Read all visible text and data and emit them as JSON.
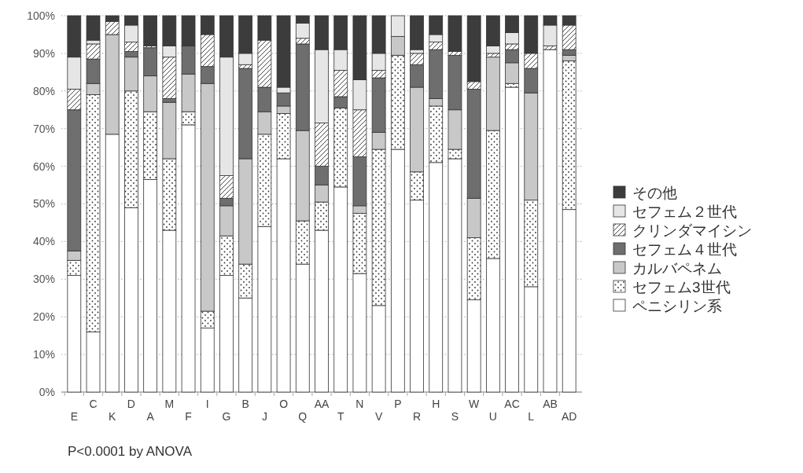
{
  "chart_data": {
    "type": "bar",
    "stacked": true,
    "categories": [
      "E",
      "C",
      "K",
      "D",
      "A",
      "M",
      "F",
      "I",
      "G",
      "B",
      "J",
      "O",
      "Q",
      "AA",
      "T",
      "N",
      "V",
      "P",
      "R",
      "H",
      "S",
      "W",
      "U",
      "AC",
      "L",
      "AB",
      "AD"
    ],
    "series": [
      {
        "name": "ペニシリン系",
        "color": "#ffffff",
        "values": [
          31,
          16,
          68.5,
          49,
          56.5,
          43,
          71,
          17,
          31,
          25,
          44,
          62,
          34,
          43,
          54.5,
          31.5,
          23,
          64.5,
          51,
          61,
          62,
          24.5,
          35.5,
          81,
          28,
          91,
          48.5
        ]
      },
      {
        "name": "セフェム3世代",
        "color": "#333333",
        "values": [
          4,
          63,
          0,
          31,
          18,
          19,
          3.5,
          4.5,
          10.5,
          9,
          24.5,
          12,
          11.5,
          7.5,
          21,
          16,
          41.5,
          25,
          7.5,
          15,
          2.5,
          16.5,
          34,
          1,
          23,
          0,
          39.5
        ]
      },
      {
        "name": "カルバペネム",
        "color": "#c8c8c8",
        "values": [
          2.5,
          3,
          26.5,
          9,
          9.5,
          15,
          10,
          60.5,
          8,
          28,
          6,
          2,
          24,
          4.5,
          0,
          2,
          4.5,
          5,
          22.5,
          2,
          10.5,
          10.5,
          19.5,
          5.5,
          28.5,
          0,
          1.5
        ]
      },
      {
        "name": "セフェム４世代",
        "color": "#6e6e6e",
        "values": [
          37.5,
          6.5,
          0,
          1.5,
          7.5,
          1,
          7.5,
          4.5,
          2,
          24,
          6.5,
          3.5,
          23,
          5,
          3,
          13,
          14.5,
          0,
          6,
          13,
          14.5,
          29,
          0,
          3.5,
          6.5,
          0,
          1.5
        ]
      },
      {
        "name": "クリンダマイシン",
        "color": "#333333",
        "values": [
          5.5,
          4,
          3.5,
          2.5,
          0.5,
          11,
          0,
          8.5,
          6,
          1,
          12.5,
          0,
          1.5,
          11.5,
          7,
          12.5,
          2,
          0,
          3,
          2,
          1,
          2,
          1,
          1.5,
          4,
          1,
          6.5
        ]
      },
      {
        "name": "セフェム２世代",
        "color": "#e6e6e6",
        "values": [
          8.5,
          1,
          0,
          4.5,
          0,
          3,
          0,
          0,
          31.5,
          3,
          0,
          1.5,
          4,
          19.5,
          5.5,
          8,
          4.5,
          5.5,
          1,
          2,
          0,
          0,
          2,
          3,
          0,
          5.5,
          0
        ]
      },
      {
        "name": "その他",
        "color": "#3c3c3c",
        "values": [
          11,
          6.5,
          1.5,
          2.5,
          8,
          8,
          8,
          5,
          11,
          10,
          6.5,
          19,
          2,
          9,
          9,
          17,
          10,
          0,
          9,
          5,
          9.5,
          17.5,
          8,
          4.5,
          10,
          2.5,
          2.5
        ]
      }
    ],
    "ylim": [
      0,
      100
    ],
    "yticks": [
      {
        "value": 0,
        "label": "0%"
      },
      {
        "value": 10,
        "label": "10%"
      },
      {
        "value": 20,
        "label": "20%"
      },
      {
        "value": 30,
        "label": "30%"
      },
      {
        "value": 40,
        "label": "40%"
      },
      {
        "value": 50,
        "label": "50%"
      },
      {
        "value": 60,
        "label": "60%"
      },
      {
        "value": 70,
        "label": "70%"
      },
      {
        "value": 80,
        "label": "80%"
      },
      {
        "value": 90,
        "label": "90%"
      },
      {
        "value": 100,
        "label": "100%"
      }
    ],
    "grid": "y",
    "legend": "right",
    "annotations": [
      "P<0.0001 by ANOVA"
    ]
  }
}
